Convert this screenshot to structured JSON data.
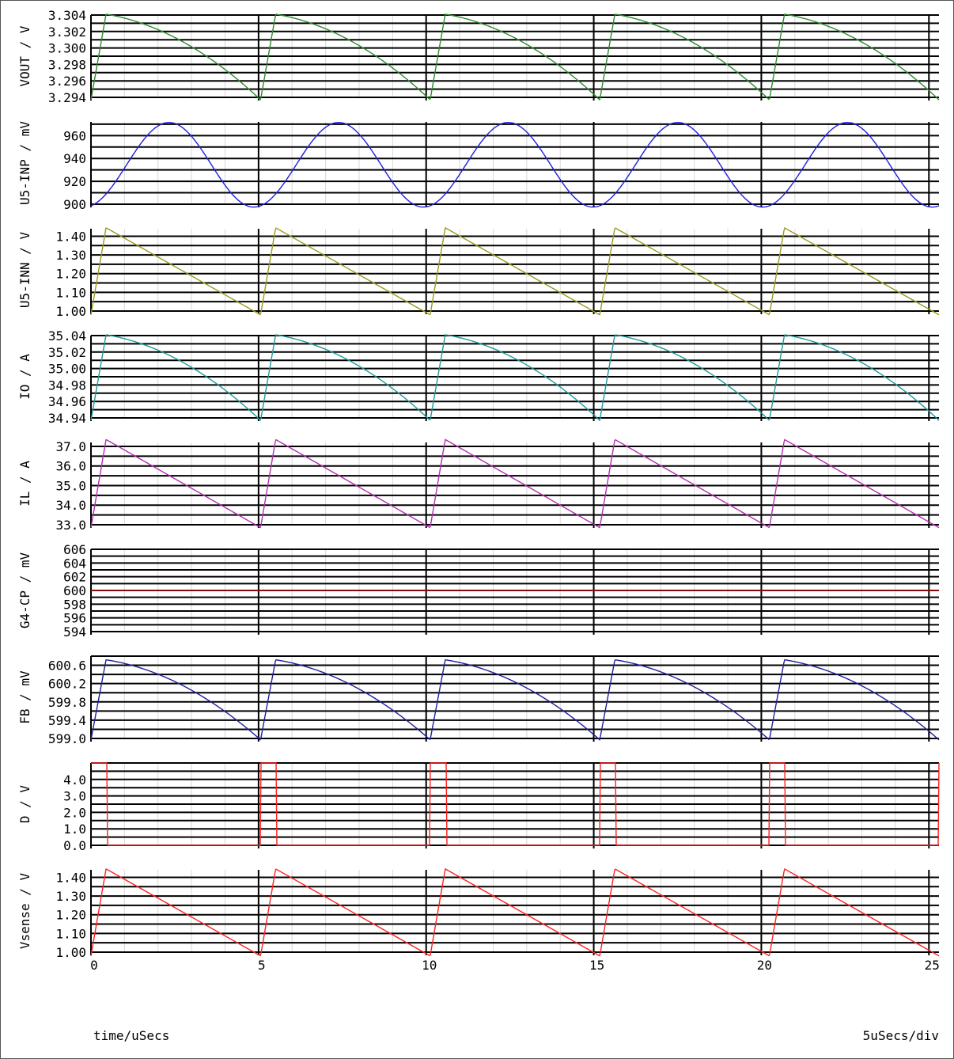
{
  "chart_data": {
    "type": "line",
    "xlabel": "time/uSecs",
    "scale_label": "5uSecs/div",
    "xlim": [
      0,
      25.3
    ],
    "x_ticks": [
      0,
      5,
      10,
      15,
      20,
      25
    ],
    "x_tick_labels": [
      "0",
      "5",
      "10",
      "15",
      "20",
      "25"
    ],
    "period": 5.06,
    "rise_time": 0.45,
    "on_time_D": 0.48,
    "panels": [
      {
        "ylabel": "VOUT / V",
        "color": "#2e8b2e",
        "ticks": [
          "3.294",
          "3.296",
          "3.298",
          "3.300",
          "3.302",
          "3.304"
        ],
        "tick_values": [
          3.294,
          3.296,
          3.298,
          3.3,
          3.302,
          3.304
        ],
        "ylim": [
          3.294,
          3.304
        ],
        "waveform": "sawtooth_curved",
        "min": 3.2937,
        "max": 3.3041
      },
      {
        "ylabel": "U5-INP / mV",
        "color": "#1f1fe0",
        "ticks": [
          "900",
          "920",
          "940",
          "960"
        ],
        "tick_values": [
          900,
          920,
          940,
          960
        ],
        "ylim": [
          900,
          972
        ],
        "waveform": "ripple",
        "min": 897.5,
        "max": 971.5
      },
      {
        "ylabel": "U5-INN / V",
        "color": "#9a9a20",
        "ticks": [
          "1.00",
          "1.10",
          "1.20",
          "1.30",
          "1.40"
        ],
        "tick_values": [
          1.0,
          1.1,
          1.2,
          1.3,
          1.4
        ],
        "ylim": [
          1.0,
          1.44
        ],
        "waveform": "sawtooth_linear",
        "min": 0.98,
        "max": 1.445
      },
      {
        "ylabel": "IO / A",
        "color": "#1f9a9a",
        "ticks": [
          "34.94",
          "34.96",
          "34.98",
          "35.00",
          "35.02",
          "35.04"
        ],
        "tick_values": [
          34.94,
          34.96,
          34.98,
          35.0,
          35.02,
          35.04
        ],
        "ylim": [
          34.94,
          35.04
        ],
        "waveform": "sawtooth_curved",
        "min": 34.937,
        "max": 35.041
      },
      {
        "ylabel": "IL / A",
        "color": "#b030b0",
        "ticks": [
          "33.0",
          "34.0",
          "35.0",
          "36.0",
          "37.0"
        ],
        "tick_values": [
          33.0,
          34.0,
          35.0,
          36.0,
          37.0
        ],
        "ylim": [
          33.0,
          37.2
        ],
        "waveform": "sawtooth_linear",
        "min": 32.85,
        "max": 37.35
      },
      {
        "ylabel": "G4-CP / mV",
        "color": "#b01010",
        "ticks": [
          "594",
          "596",
          "598",
          "600",
          "602",
          "604",
          "606"
        ],
        "tick_values": [
          594,
          596,
          598,
          600,
          602,
          604,
          606
        ],
        "ylim": [
          594,
          606
        ],
        "waveform": "constant",
        "min": 600.0,
        "max": 600.0
      },
      {
        "ylabel": "FB / mV",
        "color": "#1f1f9a",
        "ticks": [
          "599.0",
          "599.4",
          "599.8",
          "600.2",
          "600.6"
        ],
        "tick_values": [
          599.0,
          599.4,
          599.8,
          600.2,
          600.6
        ],
        "ylim": [
          599.0,
          600.8
        ],
        "waveform": "sawtooth_curved",
        "min": 598.97,
        "max": 600.72
      },
      {
        "ylabel": "D / V",
        "color": "#ff2020",
        "ticks": [
          "0.0",
          "1.0",
          "2.0",
          "3.0",
          "4.0"
        ],
        "tick_values": [
          0.0,
          1.0,
          2.0,
          3.0,
          4.0
        ],
        "ylim": [
          0.0,
          5.0
        ],
        "waveform": "pulse",
        "min": 0.0,
        "max": 5.0
      },
      {
        "ylabel": "Vsense / V",
        "color": "#ff2020",
        "ticks": [
          "1.00",
          "1.10",
          "1.20",
          "1.30",
          "1.40"
        ],
        "tick_values": [
          1.0,
          1.1,
          1.2,
          1.3,
          1.4
        ],
        "ylim": [
          1.0,
          1.44
        ],
        "waveform": "sawtooth_linear",
        "min": 0.98,
        "max": 1.445
      }
    ]
  }
}
